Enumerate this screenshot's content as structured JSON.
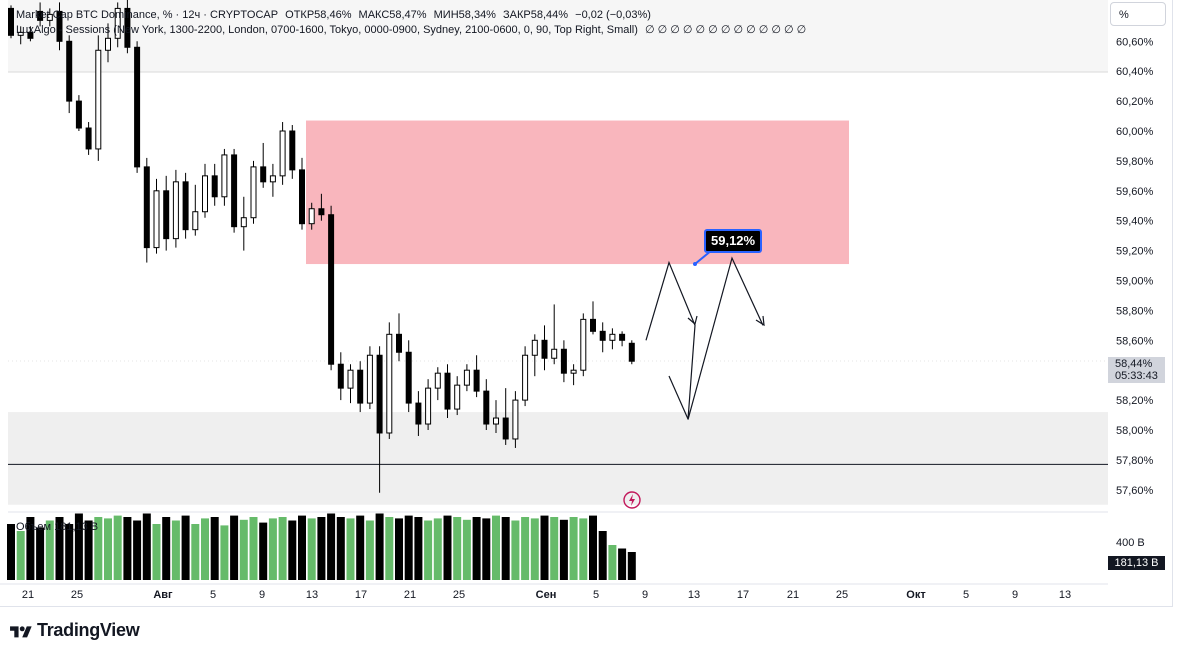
{
  "legend": {
    "line1": "Market Cap BTC Dominance, % · 12ч · CRYPTOCAP",
    "open": "ОТКР58,46%",
    "high": "МАКС58,47%",
    "low": "МИН58,34%",
    "close": "ЗАКР58,44%",
    "change": "−0,02 (−0,03%)",
    "line2": "LuxAlgo - Sessions (New York, 1300-2200, London, 0700-1600, Tokyo, 0000-0900, Sydney, 2100-0600, 0, 90, Top Right, Small)",
    "line2_tail": "∅ ∅ ∅ ∅ ∅ ∅ ∅ ∅ ∅ ∅ ∅ ∅ ∅"
  },
  "scale_mode": "%",
  "price_axis_labels": [
    "60,60%",
    "60,40%",
    "60,20%",
    "60,00%",
    "59,80%",
    "59,60%",
    "59,40%",
    "59,20%",
    "59,00%",
    "58,80%",
    "58,60%",
    "58,20%",
    "58,00%",
    "57,80%",
    "57,60%"
  ],
  "current_price": {
    "value": "58,44%",
    "countdown": "05:33:43"
  },
  "volume_axis": {
    "tick": "400 B",
    "last": "181,13 B"
  },
  "volume_overlay_label": "Объем 181,13 B",
  "callout": {
    "text": "59,12%"
  },
  "time_axis_labels": [
    "21",
    "25",
    "Авг",
    "5",
    "9",
    "13",
    "17",
    "21",
    "25",
    "Сен",
    "5",
    "9",
    "13",
    "17",
    "21",
    "25",
    "Окт",
    "5",
    "9",
    "13"
  ],
  "brand": "TradingView",
  "colors": {
    "up_body": "#ffffff",
    "down_body": "#000000",
    "wick": "#000000",
    "vol_up": "#66bb6a",
    "vol_down": "#000000",
    "supply_zone": "#f9b6bd",
    "demand_zone": "#efefef",
    "accent": "#2962ff"
  },
  "chart_data": {
    "type": "candlestick",
    "title": "Market Cap BTC Dominance, %",
    "timeframe": "12ч",
    "ylim": [
      57.5,
      60.8
    ],
    "candles_ohlc": [
      [
        60.82,
        60.84,
        60.62,
        60.64
      ],
      [
        60.64,
        60.7,
        60.58,
        60.66
      ],
      [
        60.66,
        60.7,
        60.6,
        60.62
      ],
      [
        60.8,
        60.86,
        60.7,
        60.74
      ],
      [
        60.74,
        60.82,
        60.7,
        60.78
      ],
      [
        60.8,
        60.86,
        60.54,
        60.6
      ],
      [
        60.6,
        60.64,
        60.12,
        60.2
      ],
      [
        60.2,
        60.24,
        60.0,
        60.02
      ],
      [
        60.02,
        60.06,
        59.84,
        59.88
      ],
      [
        59.88,
        60.64,
        59.8,
        60.54
      ],
      [
        60.54,
        60.72,
        60.46,
        60.62
      ],
      [
        60.62,
        60.86,
        60.56,
        60.82
      ],
      [
        60.82,
        60.88,
        60.52,
        60.56
      ],
      [
        60.56,
        60.6,
        59.72,
        59.76
      ],
      [
        59.76,
        59.82,
        59.12,
        59.22
      ],
      [
        59.22,
        59.68,
        59.18,
        59.6
      ],
      [
        59.6,
        59.7,
        59.2,
        59.28
      ],
      [
        59.28,
        59.74,
        59.22,
        59.66
      ],
      [
        59.66,
        59.72,
        59.28,
        59.34
      ],
      [
        59.34,
        59.64,
        59.3,
        59.46
      ],
      [
        59.46,
        59.78,
        59.42,
        59.7
      ],
      [
        59.7,
        59.78,
        59.5,
        59.56
      ],
      [
        59.56,
        59.88,
        59.5,
        59.84
      ],
      [
        59.84,
        59.88,
        59.32,
        59.36
      ],
      [
        59.36,
        59.56,
        59.2,
        59.42
      ],
      [
        59.42,
        59.8,
        59.38,
        59.76
      ],
      [
        59.76,
        59.92,
        59.62,
        59.66
      ],
      [
        59.66,
        59.78,
        59.56,
        59.7
      ],
      [
        59.7,
        60.06,
        59.64,
        60.0
      ],
      [
        60.0,
        60.04,
        59.68,
        59.74
      ],
      [
        59.74,
        59.82,
        59.34,
        59.38
      ],
      [
        59.38,
        59.52,
        59.34,
        59.48
      ],
      [
        59.48,
        59.58,
        59.4,
        59.44
      ],
      [
        59.44,
        59.5,
        58.4,
        58.44
      ],
      [
        58.44,
        58.52,
        58.2,
        58.28
      ],
      [
        58.28,
        58.44,
        58.18,
        58.4
      ],
      [
        58.4,
        58.46,
        58.12,
        58.18
      ],
      [
        58.18,
        58.56,
        58.14,
        58.5
      ],
      [
        58.5,
        58.56,
        57.58,
        57.98
      ],
      [
        57.98,
        58.72,
        57.94,
        58.64
      ],
      [
        58.64,
        58.78,
        58.46,
        58.52
      ],
      [
        58.52,
        58.6,
        58.12,
        58.18
      ],
      [
        58.18,
        58.26,
        57.96,
        58.04
      ],
      [
        58.04,
        58.34,
        58.0,
        58.28
      ],
      [
        58.28,
        58.42,
        58.2,
        58.38
      ],
      [
        58.38,
        58.44,
        58.08,
        58.14
      ],
      [
        58.14,
        58.36,
        58.1,
        58.3
      ],
      [
        58.3,
        58.44,
        58.26,
        58.4
      ],
      [
        58.4,
        58.5,
        58.22,
        58.26
      ],
      [
        58.26,
        58.34,
        58.0,
        58.04
      ],
      [
        58.04,
        58.2,
        57.98,
        58.08
      ],
      [
        58.08,
        58.28,
        57.9,
        57.94
      ],
      [
        57.94,
        58.26,
        57.88,
        58.2
      ],
      [
        58.2,
        58.56,
        58.16,
        58.5
      ],
      [
        58.5,
        58.64,
        58.36,
        58.6
      ],
      [
        58.6,
        58.7,
        58.4,
        58.48
      ],
      [
        58.48,
        58.84,
        58.44,
        58.54
      ],
      [
        58.54,
        58.6,
        58.32,
        58.38
      ],
      [
        58.38,
        58.44,
        58.3,
        58.4
      ],
      [
        58.4,
        58.78,
        58.36,
        58.74
      ],
      [
        58.74,
        58.86,
        58.64,
        58.66
      ],
      [
        58.66,
        58.72,
        58.52,
        58.6
      ],
      [
        58.6,
        58.68,
        58.54,
        58.64
      ],
      [
        58.64,
        58.66,
        58.56,
        58.6
      ],
      [
        58.58,
        58.6,
        58.44,
        58.46
      ],
      [
        58.46,
        58.47,
        58.34,
        58.44
      ]
    ],
    "volume_rel": [
      0.8,
      0.7,
      0.9,
      0.75,
      0.85,
      0.9,
      0.8,
      0.95,
      0.85,
      0.9,
      0.88,
      0.92,
      0.9,
      0.85,
      0.95,
      0.8,
      0.9,
      0.85,
      0.92,
      0.8,
      0.88,
      0.9,
      0.78,
      0.92,
      0.86,
      0.9,
      0.82,
      0.88,
      0.9,
      0.85,
      0.92,
      0.88,
      0.9,
      0.95,
      0.9,
      0.88,
      0.92,
      0.85,
      0.95,
      0.9,
      0.88,
      0.92,
      0.9,
      0.85,
      0.88,
      0.92,
      0.9,
      0.86,
      0.9,
      0.88,
      0.92,
      0.9,
      0.85,
      0.9,
      0.88,
      0.92,
      0.9,
      0.86,
      0.9,
      0.88,
      0.92,
      0.7,
      0.5,
      0.45,
      0.4,
      0.32
    ],
    "zones": [
      {
        "kind": "supply",
        "top": 60.07,
        "bottom": 59.11
      },
      {
        "kind": "demand",
        "top": 58.12,
        "bottom": 57.5
      }
    ],
    "support_line": 57.77,
    "projection_path": [
      58.6,
      59.12,
      58.7,
      58.07,
      59.15,
      58.7
    ],
    "callout_value": 59.12
  }
}
